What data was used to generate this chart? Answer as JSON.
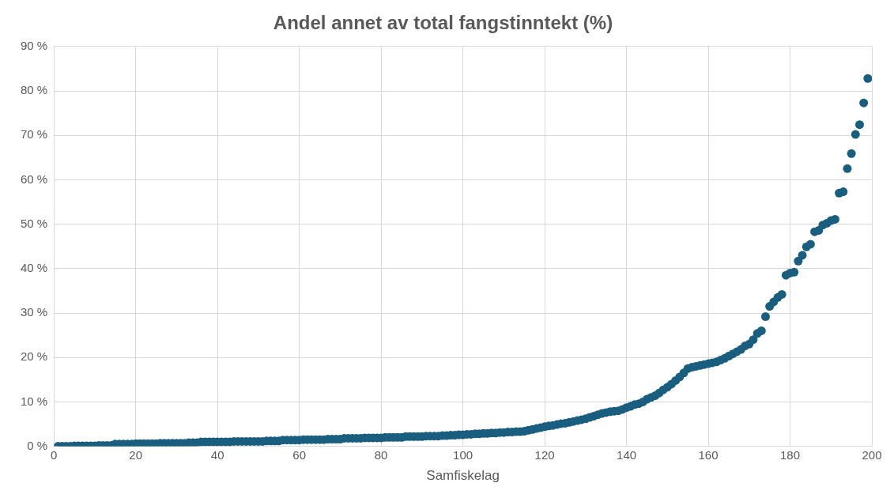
{
  "chart_data": {
    "type": "scatter",
    "title": "Andel annet av total fangstinntekt (%)",
    "xlabel": "Samfiskelag",
    "x": [
      1,
      2,
      3,
      4,
      5,
      6,
      7,
      8,
      9,
      10,
      11,
      12,
      13,
      14,
      15,
      16,
      17,
      18,
      19,
      20,
      21,
      22,
      23,
      24,
      25,
      26,
      27,
      28,
      29,
      30,
      31,
      32,
      33,
      34,
      35,
      36,
      37,
      38,
      39,
      40,
      41,
      42,
      43,
      44,
      45,
      46,
      47,
      48,
      49,
      50,
      51,
      52,
      53,
      54,
      55,
      56,
      57,
      58,
      59,
      60,
      61,
      62,
      63,
      64,
      65,
      66,
      67,
      68,
      69,
      70,
      71,
      72,
      73,
      74,
      75,
      76,
      77,
      78,
      79,
      80,
      81,
      82,
      83,
      84,
      85,
      86,
      87,
      88,
      89,
      90,
      91,
      92,
      93,
      94,
      95,
      96,
      97,
      98,
      99,
      100,
      101,
      102,
      103,
      104,
      105,
      106,
      107,
      108,
      109,
      110,
      111,
      112,
      113,
      114,
      115,
      116,
      117,
      118,
      119,
      120,
      121,
      122,
      123,
      124,
      125,
      126,
      127,
      128,
      129,
      130,
      131,
      132,
      133,
      134,
      135,
      136,
      137,
      138,
      139,
      140,
      141,
      142,
      143,
      144,
      145,
      146,
      147,
      148,
      149,
      150,
      151,
      152,
      153,
      154,
      155,
      156,
      157,
      158,
      159,
      160,
      161,
      162,
      163,
      164,
      165,
      166,
      167,
      168,
      169,
      170,
      171,
      172,
      173,
      174,
      175,
      176,
      177,
      178,
      179,
      180,
      181,
      182,
      183,
      184,
      185,
      186,
      187,
      188,
      189,
      190,
      191,
      192,
      193,
      194,
      195,
      196,
      197,
      198,
      199
    ],
    "series": [
      {
        "color": "#195e7f",
        "values": [
          0.0,
          0.0,
          0.0,
          0.0,
          0.1,
          0.1,
          0.1,
          0.1,
          0.1,
          0.1,
          0.2,
          0.2,
          0.2,
          0.2,
          0.5,
          0.5,
          0.5,
          0.5,
          0.5,
          0.6,
          0.6,
          0.6,
          0.6,
          0.6,
          0.6,
          0.7,
          0.7,
          0.7,
          0.7,
          0.7,
          0.7,
          0.7,
          0.8,
          0.8,
          0.8,
          1.0,
          1.0,
          1.0,
          1.0,
          1.0,
          1.0,
          1.0,
          1.0,
          1.1,
          1.1,
          1.1,
          1.1,
          1.1,
          1.1,
          1.1,
          1.1,
          1.2,
          1.2,
          1.2,
          1.2,
          1.4,
          1.4,
          1.4,
          1.4,
          1.4,
          1.5,
          1.5,
          1.5,
          1.5,
          1.5,
          1.5,
          1.6,
          1.6,
          1.6,
          1.6,
          1.8,
          1.8,
          1.8,
          1.8,
          1.8,
          1.9,
          1.9,
          1.9,
          1.9,
          1.9,
          2.0,
          2.0,
          2.0,
          2.0,
          2.0,
          2.2,
          2.2,
          2.2,
          2.2,
          2.2,
          2.3,
          2.3,
          2.3,
          2.3,
          2.4,
          2.4,
          2.5,
          2.5,
          2.6,
          2.6,
          2.7,
          2.7,
          2.8,
          2.8,
          2.9,
          2.9,
          3.0,
          3.0,
          3.1,
          3.1,
          3.2,
          3.2,
          3.3,
          3.3,
          3.4,
          3.6,
          3.8,
          4.0,
          4.2,
          4.4,
          4.6,
          4.7,
          4.9,
          5.1,
          5.2,
          5.4,
          5.6,
          5.8,
          6.0,
          6.2,
          6.5,
          6.8,
          7.1,
          7.4,
          7.6,
          7.8,
          7.9,
          8.0,
          8.3,
          8.7,
          9.0,
          9.4,
          9.6,
          10.0,
          10.6,
          11.0,
          11.4,
          12.0,
          12.7,
          13.3,
          14.0,
          14.8,
          15.6,
          16.5,
          17.5,
          17.8,
          18.0,
          18.2,
          18.4,
          18.6,
          18.8,
          19.0,
          19.4,
          19.8,
          20.3,
          20.8,
          21.3,
          21.8,
          22.6,
          23.0,
          24.0,
          25.4,
          26.0,
          29.2,
          31.5,
          32.5,
          33.5,
          34.2,
          38.5,
          39.0,
          39.2,
          41.7,
          43.0,
          44.9,
          45.5,
          48.3,
          48.6,
          49.8,
          50.2,
          50.8,
          51.1,
          57.0,
          57.3,
          62.5,
          65.9,
          70.2,
          72.4,
          77.3,
          82.8
        ]
      }
    ],
    "xlim": [
      0,
      200
    ],
    "xticks": [
      0,
      20,
      40,
      60,
      80,
      100,
      120,
      140,
      160,
      180,
      200
    ],
    "ylim": [
      0,
      90
    ],
    "yticks": [
      {
        "value": 0,
        "label": "0 %"
      },
      {
        "value": 10,
        "label": "10 %"
      },
      {
        "value": 20,
        "label": "20 %"
      },
      {
        "value": 30,
        "label": "30 %"
      },
      {
        "value": 40,
        "label": "40 %"
      },
      {
        "value": 50,
        "label": "50 %"
      },
      {
        "value": 60,
        "label": "60 %"
      },
      {
        "value": 70,
        "label": "70 %"
      },
      {
        "value": 80,
        "label": "80 %"
      },
      {
        "value": 90,
        "label": "90 %"
      }
    ],
    "grid": true,
    "legend": false,
    "marker": "circle"
  }
}
